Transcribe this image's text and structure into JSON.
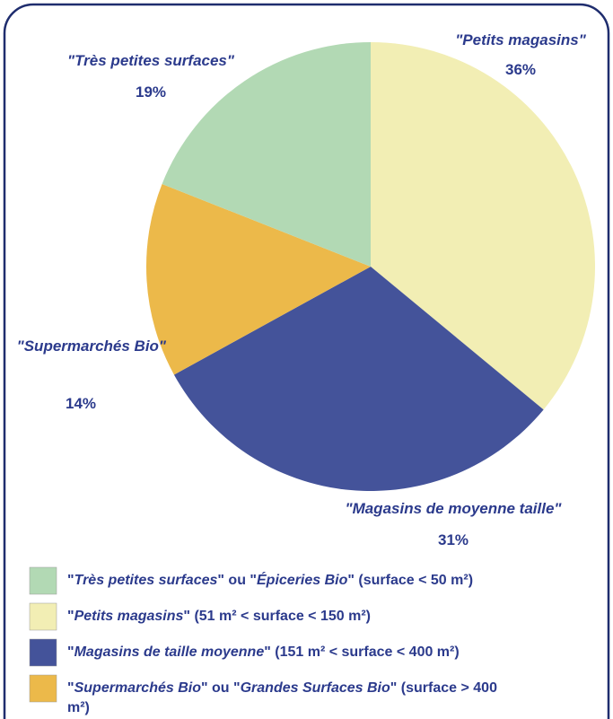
{
  "chart_data": {
    "type": "pie",
    "categories": [
      "\"Petits magasins\"",
      "\"Magasins de moyenne taille\"",
      "\"Supermarchés Bio\"",
      "\"Très petites surfaces\""
    ],
    "values": [
      36,
      31,
      14,
      19
    ],
    "value_labels": [
      "36%",
      "31%",
      "14%",
      "19%"
    ],
    "colors": [
      "#f2eeb4",
      "#44539a",
      "#ecb94a",
      "#b2d9b4"
    ],
    "legend": [
      {
        "parts": [
          "\"",
          "Très petites surfaces",
          "\" ou \"",
          "Épiceries Bio",
          "\" (surface < 50 m²)"
        ],
        "color": "#b2d9b4"
      },
      {
        "parts": [
          "\"",
          "Petits magasins",
          "\" (51 m² < surface < 150 m²)"
        ],
        "color": "#f2eeb4"
      },
      {
        "parts": [
          "\"",
          "Magasins de taille moyenne",
          "\" (151 m² < surface < 400 m²)"
        ],
        "color": "#44539a"
      },
      {
        "parts": [
          "\"",
          "Supermarchés Bio",
          "\" ou \"",
          "Grandes Surfaces Bio",
          "\" (surface > 400 m²)"
        ],
        "color": "#ecb94a"
      }
    ]
  }
}
